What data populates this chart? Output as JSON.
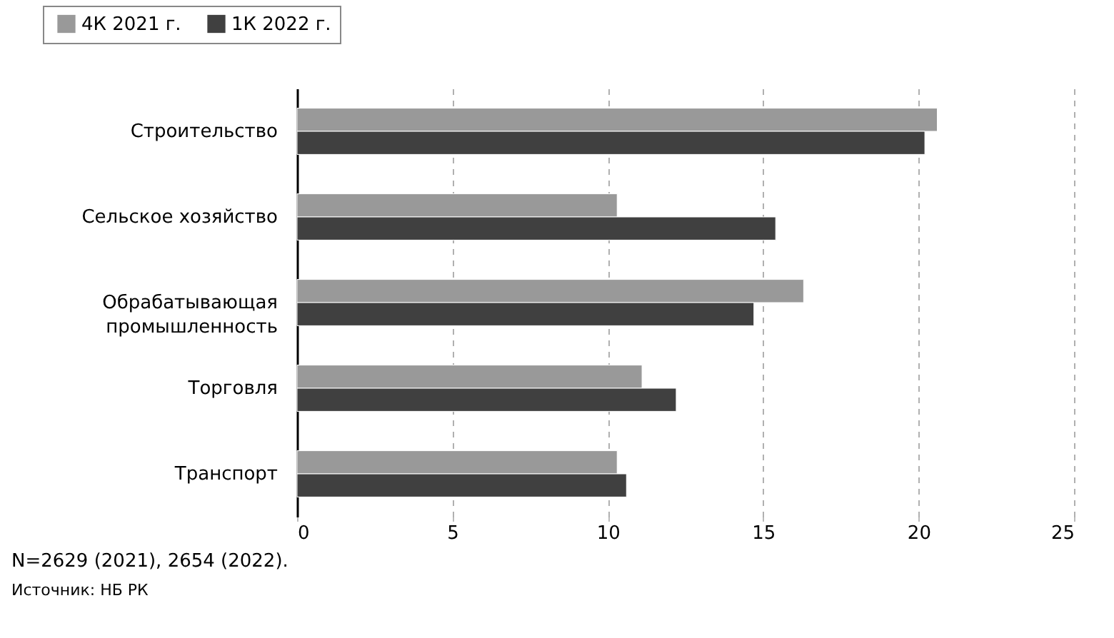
{
  "chart_data": {
    "type": "bar",
    "orientation": "horizontal",
    "categories": [
      "Строительство",
      "Сельское хозяйство",
      "Обрабатывающая промышленность",
      "Торговля",
      "Транспорт"
    ],
    "series": [
      {
        "name": "4К 2021 г.",
        "color": "#999999",
        "values": [
          20.6,
          10.3,
          16.3,
          11.1,
          10.3
        ]
      },
      {
        "name": "1К 2022 г.",
        "color": "#404040",
        "values": [
          20.2,
          15.4,
          14.7,
          12.2,
          10.6
        ]
      }
    ],
    "xlim": [
      0,
      25
    ],
    "xticks": [
      0,
      5,
      10,
      15,
      20,
      25
    ],
    "grid": "x",
    "legend": "top left",
    "annotations": [
      "N=2629 (2021), 2654 (2022).",
      "Источник: НБ РК"
    ]
  }
}
